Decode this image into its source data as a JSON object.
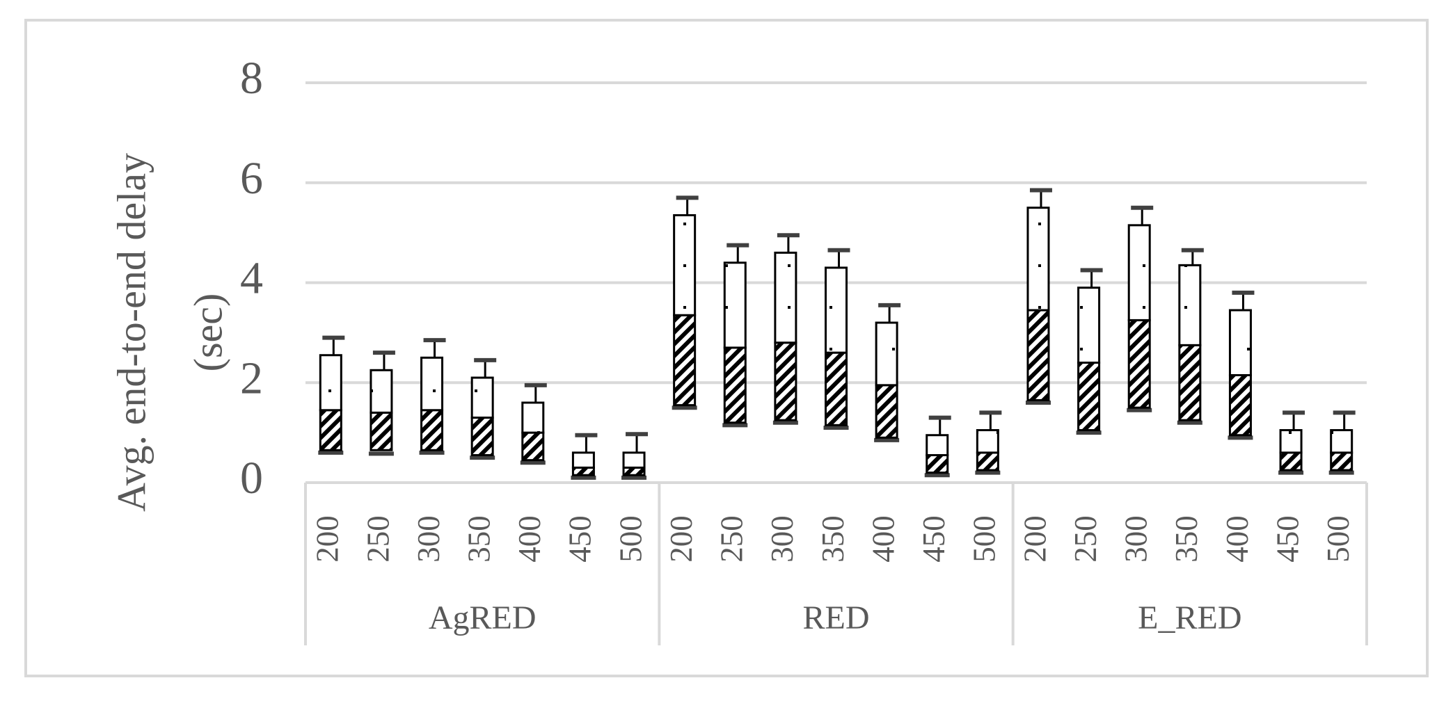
{
  "chart_data": {
    "type": "box",
    "y_label": [
      "Avg. end-to-end delay",
      "(sec)"
    ],
    "ylim": [
      0,
      8
    ],
    "yticks": [
      0,
      2,
      4,
      6,
      8
    ],
    "grid": true,
    "groups": [
      {
        "name": "AgRED",
        "categories": [
          "200",
          "250",
          "300",
          "350",
          "400",
          "450",
          "500"
        ],
        "min": [
          0.6,
          0.58,
          0.6,
          0.5,
          0.4,
          0.1,
          0.1
        ],
        "q1": [
          0.65,
          0.65,
          0.65,
          0.55,
          0.45,
          0.15,
          0.15
        ],
        "median": [
          1.45,
          1.4,
          1.45,
          1.3,
          1.0,
          0.3,
          0.3
        ],
        "q3": [
          2.55,
          2.25,
          2.5,
          2.1,
          1.6,
          0.6,
          0.6
        ],
        "max": [
          2.9,
          2.6,
          2.85,
          2.45,
          1.95,
          0.95,
          0.97
        ]
      },
      {
        "name": "RED",
        "categories": [
          "200",
          "250",
          "300",
          "350",
          "400",
          "450",
          "500"
        ],
        "min": [
          1.5,
          1.15,
          1.2,
          1.1,
          0.85,
          0.15,
          0.2
        ],
        "q1": [
          1.55,
          1.2,
          1.25,
          1.15,
          0.9,
          0.2,
          0.25
        ],
        "median": [
          3.35,
          2.7,
          2.8,
          2.6,
          1.95,
          0.55,
          0.6
        ],
        "q3": [
          5.35,
          4.4,
          4.6,
          4.3,
          3.2,
          0.95,
          1.05
        ],
        "max": [
          5.7,
          4.75,
          4.95,
          4.65,
          3.55,
          1.3,
          1.4
        ]
      },
      {
        "name": "E_RED",
        "categories": [
          "200",
          "250",
          "300",
          "350",
          "400",
          "450",
          "500"
        ],
        "min": [
          1.6,
          1.0,
          1.45,
          1.2,
          0.9,
          0.2,
          0.2
        ],
        "q1": [
          1.65,
          1.05,
          1.5,
          1.25,
          0.95,
          0.25,
          0.25
        ],
        "median": [
          3.45,
          2.4,
          3.25,
          2.75,
          2.15,
          0.6,
          0.6
        ],
        "q3": [
          5.5,
          3.9,
          5.15,
          4.35,
          3.45,
          1.05,
          1.05
        ],
        "max": [
          5.85,
          4.25,
          5.5,
          4.65,
          3.8,
          1.4,
          1.4
        ]
      }
    ]
  }
}
